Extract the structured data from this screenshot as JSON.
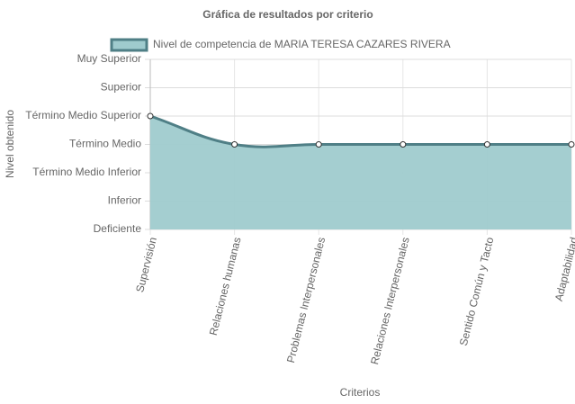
{
  "chart_data": {
    "type": "line",
    "title": "Gráfica de resultados por criterio",
    "x_label": "Criterios",
    "y_label": "Nivel obtenido",
    "categories": [
      "Supervisión",
      "Relaciones humanas",
      "Problemas Interpersonales",
      "Relaciones Interpersonales",
      "Sentido Común y Tacto",
      "Adaptabilidad"
    ],
    "series": [
      {
        "name": "Nivel de competencia de MARIA TERESA CAZARES RIVERA",
        "color": "#4f7f86",
        "fill": "#9fcbce",
        "values": [
          5,
          4,
          4,
          4,
          4,
          4
        ]
      }
    ],
    "ylim": [
      1,
      7
    ],
    "yticks": [
      {
        "value": 1,
        "label": "Deficiente"
      },
      {
        "value": 2,
        "label": "Inferior"
      },
      {
        "value": 3,
        "label": "Término Medio Inferior"
      },
      {
        "value": 4,
        "label": "Término Medio"
      },
      {
        "value": 5,
        "label": "Término Medio Superior"
      },
      {
        "value": 6,
        "label": "Superior"
      },
      {
        "value": 7,
        "label": "Muy Superior"
      }
    ],
    "grid": true,
    "legend": "top"
  }
}
